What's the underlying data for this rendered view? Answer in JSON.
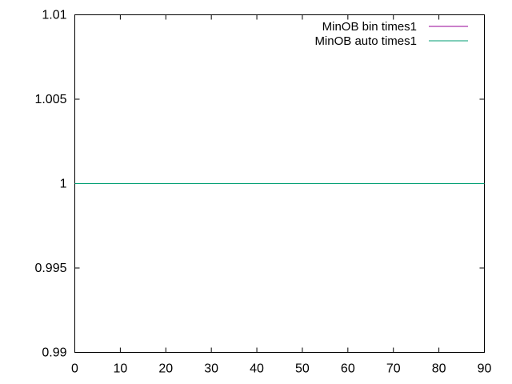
{
  "chart_data": {
    "type": "line",
    "title": "",
    "xlabel": "",
    "ylabel": "",
    "xlim": [
      0,
      90
    ],
    "ylim": [
      0.99,
      1.01
    ],
    "x_ticks": [
      0,
      10,
      20,
      30,
      40,
      50,
      60,
      70,
      80,
      90
    ],
    "x_tick_labels": [
      "0",
      "10",
      "20",
      "30",
      "40",
      "50",
      "60",
      "70",
      "80",
      "90"
    ],
    "y_ticks": [
      0.99,
      0.995,
      1,
      1.005,
      1.01
    ],
    "y_tick_labels": [
      "0.99",
      "0.995",
      "1",
      "1.005",
      "1.01"
    ],
    "grid": false,
    "legend_position": "top-right",
    "series": [
      {
        "name": "MinOB bin times1",
        "color": "#940094",
        "x": [
          0,
          90
        ],
        "y": [
          1,
          1
        ]
      },
      {
        "name": "MinOB auto times1",
        "color": "#009e73",
        "x": [
          0,
          90
        ],
        "y": [
          1,
          1
        ]
      }
    ]
  }
}
